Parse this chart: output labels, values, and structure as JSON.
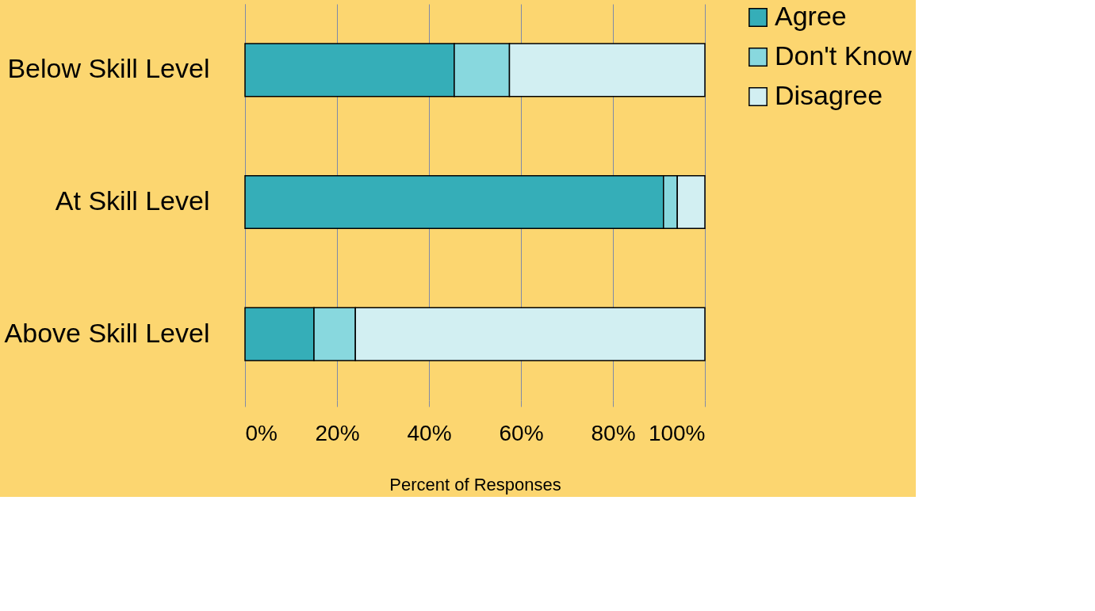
{
  "chart_data": {
    "type": "bar",
    "orientation": "horizontal",
    "stacked": true,
    "categories": [
      "Below Skill Level",
      "At Skill Level",
      "Above Skill Level"
    ],
    "series": [
      {
        "name": "Agree",
        "color": "#35aeb8",
        "values": [
          45.5,
          91,
          15
        ]
      },
      {
        "name": "Don't Know",
        "color": "#88d8de",
        "values": [
          12,
          3,
          9
        ]
      },
      {
        "name": "Disagree",
        "color": "#d2eff2",
        "values": [
          42.5,
          6,
          76
        ]
      }
    ],
    "xlim": [
      0,
      100
    ],
    "xticks": [
      {
        "value": 0,
        "label": "0%"
      },
      {
        "value": 20,
        "label": "20%"
      },
      {
        "value": 40,
        "label": "40%"
      },
      {
        "value": 60,
        "label": "60%"
      },
      {
        "value": 80,
        "label": "80%"
      },
      {
        "value": 100,
        "label": "100%"
      }
    ],
    "xlabel": "Percent of Responses",
    "grid": "x",
    "legend": "right"
  }
}
